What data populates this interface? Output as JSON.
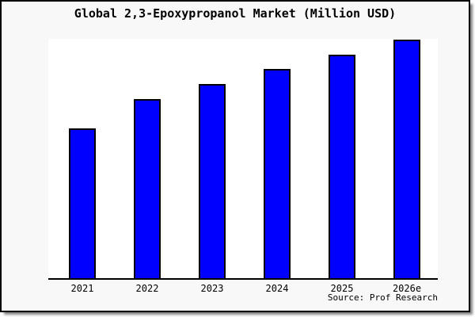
{
  "chart_data": {
    "type": "bar",
    "title": "Global 2,3-Epoxypropanol Market (Million USD)",
    "categories": [
      "2021",
      "2022",
      "2023",
      "2024",
      "2025",
      "2026e"
    ],
    "values_pct_of_plot_height": [
      62.2,
      74.3,
      80.6,
      86.8,
      92.8,
      99.0
    ],
    "series_note": "no y-axis scale or gridlines shown; values estimated as percent of plot height",
    "xlabel": "",
    "ylabel": "",
    "y_axis_labels_visible": false,
    "grid": false,
    "legend": "none",
    "bar_fill_color": "#0000ff",
    "bar_border_color": "#000000",
    "plot_background_color": "#ffffff",
    "canvas_background_color": "#f8f8f8"
  },
  "footer": {
    "source_label": "Source: Prof Research"
  }
}
